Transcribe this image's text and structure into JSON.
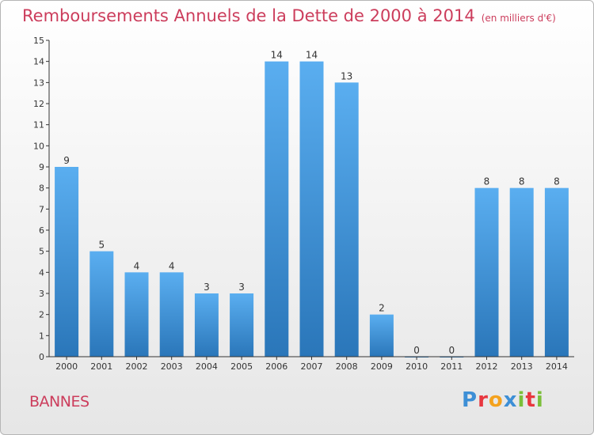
{
  "title": "Remboursements Annuels de la Dette de 2000 à 2014",
  "subtitle": "(en milliers d'€)",
  "commune": "BANNES",
  "logo_text": [
    "P",
    "r",
    "o",
    "x",
    "i",
    "t",
    "i"
  ],
  "colors": {
    "title": "#cc3d5c",
    "bar_light": "#5aaef0",
    "bar_dark": "#2a76b9"
  },
  "chart_data": {
    "type": "bar",
    "categories": [
      "2000",
      "2001",
      "2002",
      "2003",
      "2004",
      "2005",
      "2006",
      "2007",
      "2008",
      "2009",
      "2010",
      "2011",
      "2012",
      "2013",
      "2014"
    ],
    "values": [
      9,
      5,
      4,
      4,
      3,
      3,
      14,
      14,
      13,
      2,
      0,
      0,
      8,
      8,
      8
    ],
    "data_labels": [
      "9",
      "5",
      "4",
      "4",
      "3",
      "3",
      "14",
      "14",
      "13",
      "2",
      "0",
      "0",
      "8",
      "8",
      "8"
    ],
    "yticks": [
      "0",
      "1",
      "2",
      "3",
      "4",
      "5",
      "6",
      "7",
      "8",
      "9",
      "10",
      "11",
      "12",
      "13",
      "14",
      "15"
    ],
    "ylim": [
      0,
      15
    ],
    "grid": false,
    "legend": "none"
  }
}
